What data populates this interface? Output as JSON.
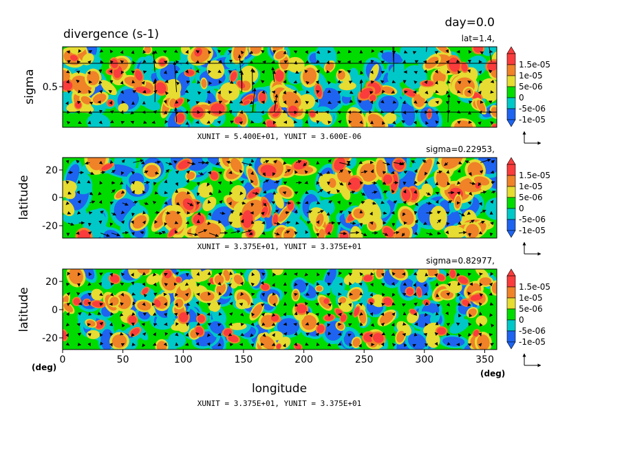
{
  "header": {
    "title": "divergence (s-1)",
    "time": "day=0.0"
  },
  "colors": {
    "levels": [
      "#1e64f0",
      "#00c8c8",
      "#00dc00",
      "#e6dc32",
      "#f08228",
      "#fa3c3c"
    ],
    "thresholds": [
      -1e-05,
      -5e-06,
      0,
      5e-06,
      1e-05,
      1.5e-05
    ]
  },
  "colorbar_labels": [
    "1.5e-05",
    "1e-05",
    "5e-06",
    "0",
    "-5e-06",
    "-1e-05"
  ],
  "chart_data": [
    {
      "type": "heatmap",
      "id": "panel-1",
      "variable": "divergence",
      "slice_label": "lat=1.4,",
      "ylabel": "sigma",
      "y_ticks": [
        "0.5"
      ],
      "unit_caption": "XUNIT = 5.400E+01, YUNIT = 3.600E-06",
      "xlim": [
        0,
        360
      ],
      "ylim": [
        0,
        1
      ]
    },
    {
      "type": "heatmap",
      "id": "panel-2",
      "variable": "divergence",
      "slice_label": "sigma=0.22953,",
      "ylabel": "latitude",
      "y_ticks": [
        "20",
        "0",
        "-20"
      ],
      "unit_caption": "XUNIT = 3.375E+01, YUNIT = 3.375E+01",
      "xlim": [
        0,
        360
      ],
      "ylim": [
        -28,
        28
      ]
    },
    {
      "type": "heatmap",
      "id": "panel-3",
      "variable": "divergence",
      "slice_label": "sigma=0.82977,",
      "ylabel": "latitude",
      "y_ticks": [
        "20",
        "0",
        "-20"
      ],
      "xlabel": "longitude",
      "x_ticks": [
        "0",
        "50",
        "100",
        "150",
        "200",
        "250",
        "300",
        "350"
      ],
      "x_unit_left": "(deg)",
      "x_unit_right": "(deg)",
      "unit_caption": "XUNIT = 3.375E+01, YUNIT = 3.375E+01",
      "xlim": [
        0,
        360
      ],
      "ylim": [
        -28,
        28
      ]
    }
  ]
}
